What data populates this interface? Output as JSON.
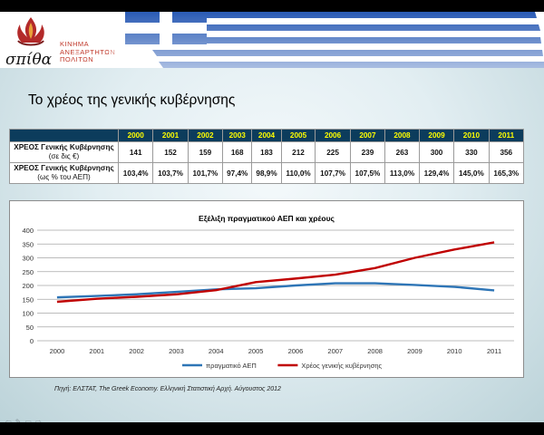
{
  "header": {
    "logo_wordmark": "σπίθα",
    "logo_lines": [
      "ΚΙΝΗΜΑ",
      "ΑΝΕΞΑΡΤΗΤΩΝ",
      "ΠΟΛΙΤΩΝ"
    ]
  },
  "slide": {
    "title": "Το χρέος της γενικής κυβέρνησης",
    "source": "Πηγή: ΕΛΣΤΑΤ, The Greek Economy. Ελληνική Στατιστική Αρχή. Αύγουστος 2012"
  },
  "table": {
    "years": [
      "2000",
      "2001",
      "2002",
      "2003",
      "2004",
      "2005",
      "2006",
      "2007",
      "2008",
      "2009",
      "2010",
      "2011"
    ],
    "rows": [
      {
        "label": "ΧΡΕΟΣ Γενικής Κυβέρνησης",
        "sublabel": "(σε δις €)",
        "values": [
          "141",
          "152",
          "159",
          "168",
          "183",
          "212",
          "225",
          "239",
          "263",
          "300",
          "330",
          "356"
        ]
      },
      {
        "label": "ΧΡΕΟΣ Γενικής Κυβέρνησης",
        "sublabel": "(ως % του ΑΕΠ)",
        "values": [
          "103,4%",
          "103,7%",
          "101,7%",
          "97,4%",
          "98,9%",
          "110,0%",
          "107,7%",
          "107,5%",
          "113,0%",
          "129,4%",
          "145,0%",
          "165,3%"
        ]
      }
    ]
  },
  "chart_data": {
    "type": "line",
    "title": "Εξέλιξη πραγματικού ΑΕΠ και χρέους",
    "x": [
      "2000",
      "2001",
      "2002",
      "2003",
      "2004",
      "2005",
      "2006",
      "2007",
      "2008",
      "2009",
      "2010",
      "2011"
    ],
    "ylim": [
      0,
      400
    ],
    "yticks": [
      0,
      50,
      100,
      150,
      200,
      250,
      300,
      350,
      400
    ],
    "grid": true,
    "legend": "bottom",
    "series": [
      {
        "name": "πραγματικό ΑΕΠ",
        "color": "#2e75b6",
        "values": [
          157,
          162,
          168,
          177,
          186,
          190,
          200,
          208,
          208,
          202,
          195,
          182
        ]
      },
      {
        "name": "Χρέος γενικής κυβέρνησης",
        "color": "#c00000",
        "values": [
          141,
          152,
          159,
          168,
          183,
          212,
          225,
          239,
          263,
          300,
          330,
          356
        ]
      }
    ]
  },
  "nav_icons": [
    "back-arrow-icon",
    "pen-icon",
    "slides-icon",
    "forward-arrow-icon"
  ]
}
